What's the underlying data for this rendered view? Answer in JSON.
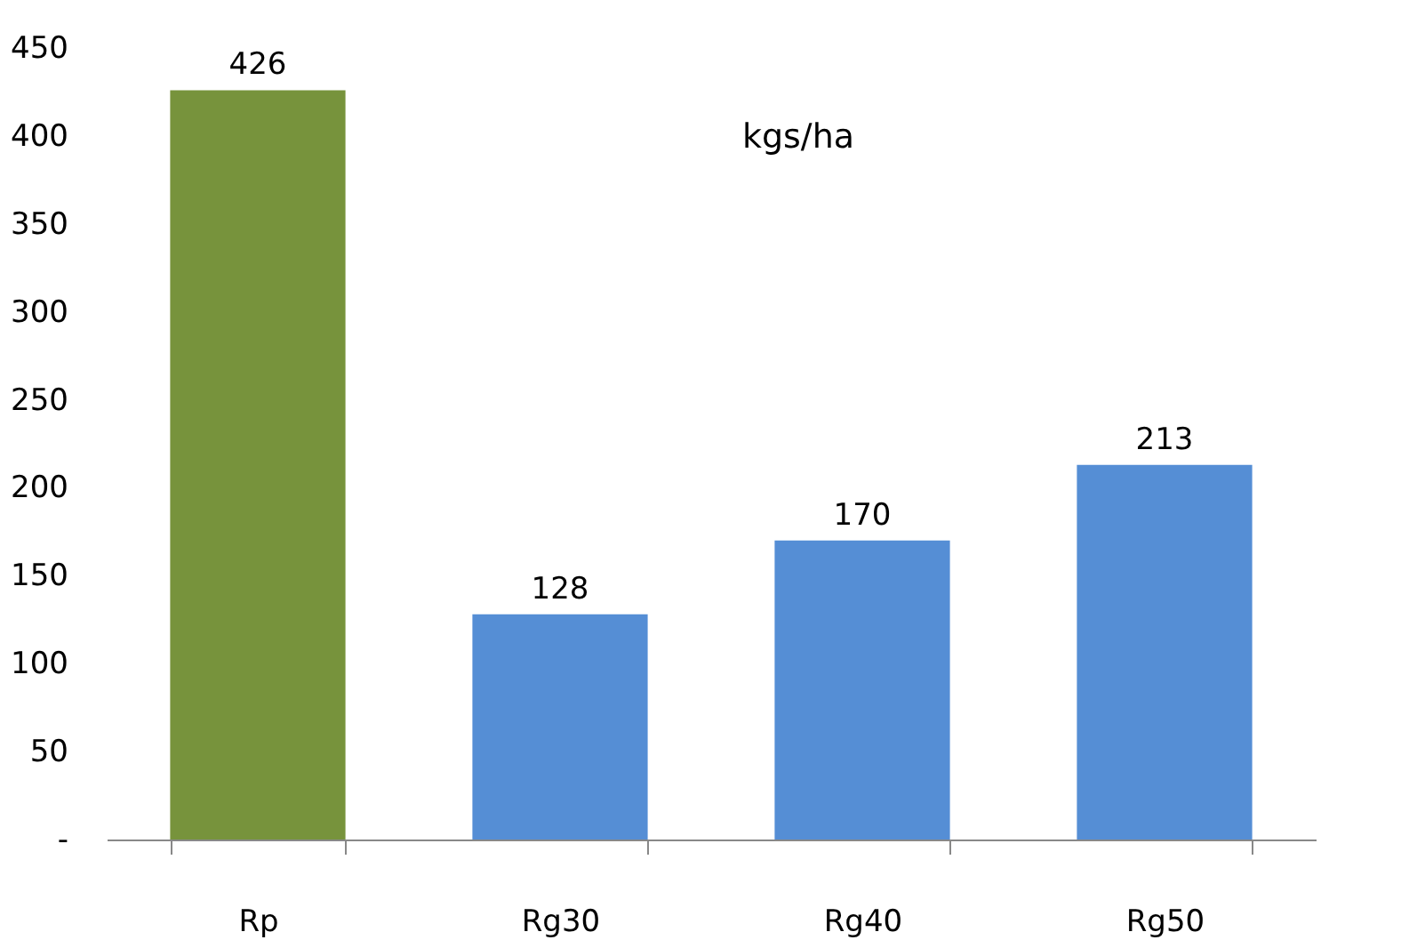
{
  "chart_data": {
    "type": "bar",
    "categories": [
      "Rp",
      "Rg30",
      "Rg40",
      "Rg50"
    ],
    "values": [
      426,
      128,
      170,
      213
    ],
    "colors": [
      "#77933c",
      "#558ed5",
      "#558ed5",
      "#558ed5"
    ],
    "ylim": [
      0,
      450
    ],
    "yticks": [
      {
        "value": 0,
        "label": "-"
      },
      50,
      100,
      150,
      200,
      250,
      300,
      350,
      400,
      450
    ],
    "annotations": [
      "kgs/ha"
    ],
    "data_labels": true,
    "grid": false
  }
}
